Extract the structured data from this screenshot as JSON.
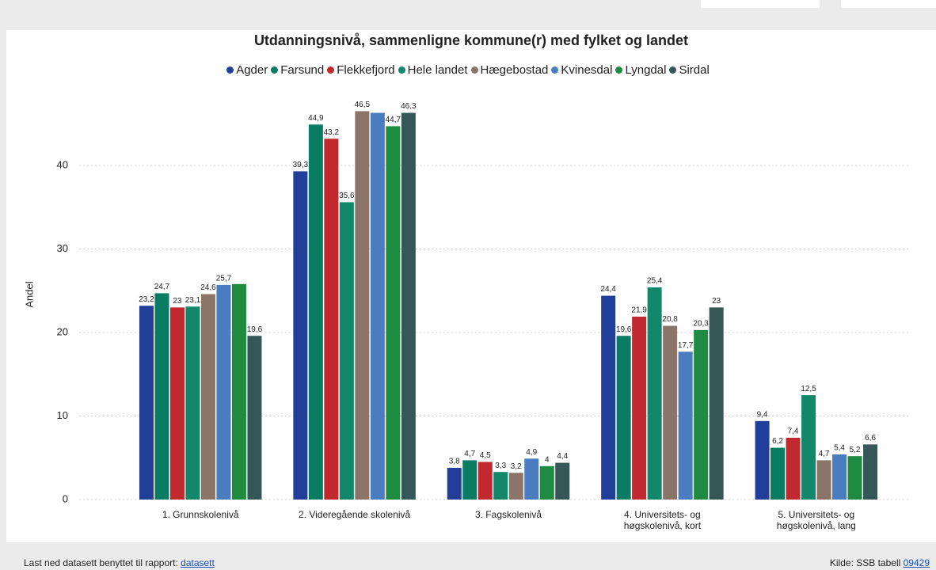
{
  "chart_data": {
    "type": "bar",
    "title": "Utdanningsnivå, sammenligne kommune(r) med fylket og landet",
    "ylabel": "Andel",
    "categories": [
      "1. Grunnskolenivå",
      "2. Videregående skolenivå",
      "3. Fagskolenivå",
      "4. Universitets- og\nhøgskolenivå, kort",
      "5. Universitets- og\nhøgskolenivå, lang"
    ],
    "series": [
      {
        "name": "Agder",
        "color": "#213f98",
        "values": [
          23.2,
          39.3,
          3.8,
          24.4,
          9.4
        ],
        "value_labels": [
          "23,2",
          "39,3",
          "3,8",
          "24,4",
          "9,4"
        ]
      },
      {
        "name": "Farsund",
        "color": "#0a7c63",
        "values": [
          24.7,
          44.9,
          4.7,
          19.6,
          6.2
        ],
        "value_labels": [
          "24,7",
          "44,9",
          "4,7",
          "19,6",
          "6,2"
        ]
      },
      {
        "name": "Flekkefjord",
        "color": "#c1292e",
        "values": [
          23,
          43.2,
          4.5,
          21.9,
          7.4
        ],
        "value_labels": [
          "23",
          "43,2",
          "4,5",
          "21,9",
          "7,4"
        ]
      },
      {
        "name": "Hele landet",
        "color": "#138769",
        "values": [
          23.1,
          35.6,
          3.3,
          25.4,
          12.5
        ],
        "value_labels": [
          "23,1",
          "35,6",
          "3,3",
          "25,4",
          "12,5"
        ]
      },
      {
        "name": "Hægebostad",
        "color": "#8b7468",
        "values": [
          24.6,
          46.5,
          3.2,
          20.8,
          4.7
        ],
        "value_labels": [
          "24,6",
          "46,5",
          "3,2",
          "20,8",
          "4,7"
        ]
      },
      {
        "name": "Kvinesdal",
        "color": "#4a7cc0",
        "values": [
          25.7,
          46.3,
          4.9,
          17.7,
          5.4
        ],
        "value_labels": [
          "25,7",
          null,
          "4,9",
          "17,7",
          "5,4"
        ]
      },
      {
        "name": "Lyngdal",
        "color": "#1f8b40",
        "values": [
          25.8,
          44.7,
          4,
          20.3,
          5.2
        ],
        "value_labels": [
          null,
          "44,7",
          "4",
          "20,3",
          "5,2"
        ]
      },
      {
        "name": "Sirdal",
        "color": "#355757",
        "values": [
          19.6,
          46.3,
          4.4,
          23,
          6.6
        ],
        "value_labels": [
          "19,6",
          "46,3",
          "4,4",
          "23",
          "6,6"
        ]
      }
    ],
    "ylim": [
      0,
      48
    ],
    "yticks": [
      0,
      10,
      20,
      30,
      40
    ],
    "grid": true
  },
  "footer": {
    "left_text": "Last ned datasett benyttet til rapport:",
    "left_link": "datasett",
    "right_text": "Kilde: SSB tabell",
    "right_link": "09429"
  }
}
